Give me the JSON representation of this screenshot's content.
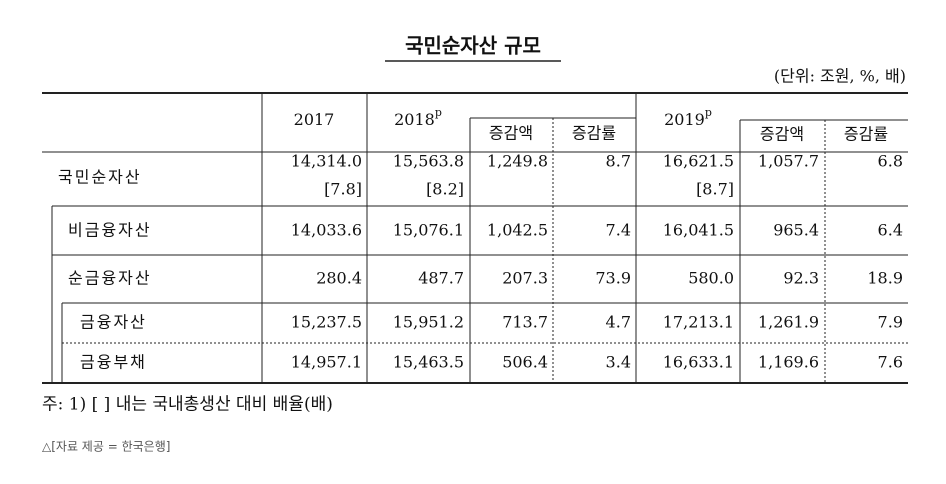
{
  "title": "국민순자산 규모",
  "unit": "(단위: 조원, %, 배)",
  "table": {
    "header": {
      "year_columns": [
        "2017",
        "2018",
        "2019"
      ],
      "preliminary_mark": "p",
      "sub_columns": [
        "증감액",
        "증감률"
      ]
    },
    "rows": [
      {
        "label": "국민순자산",
        "cells": [
          "14,314.0",
          "15,563.8",
          "1,249.8",
          "8.7",
          "16,621.5",
          "1,057.7",
          "6.8"
        ],
        "ratios": [
          "[7.8]",
          "[8.2]",
          "[8.7]"
        ]
      },
      {
        "label": "비금융자산",
        "cells": [
          "14,033.6",
          "15,076.1",
          "1,042.5",
          "7.4",
          "16,041.5",
          "965.4",
          "6.4"
        ]
      },
      {
        "label": "순금융자산",
        "cells": [
          "280.4",
          "487.7",
          "207.3",
          "73.9",
          "580.0",
          "92.3",
          "18.9"
        ]
      },
      {
        "label": "금융자산",
        "cells": [
          "15,237.5",
          "15,951.2",
          "713.7",
          "4.7",
          "17,213.1",
          "1,261.9",
          "7.9"
        ]
      },
      {
        "label": "금융부채",
        "cells": [
          "14,957.1",
          "15,463.5",
          "506.4",
          "3.4",
          "16,633.1",
          "1,169.6",
          "7.6"
        ]
      }
    ]
  },
  "footnote": "주: 1) [  ] 내는 국내총생산 대비 배율(배)",
  "source": "△[자료 제공 = 한국은행]"
}
